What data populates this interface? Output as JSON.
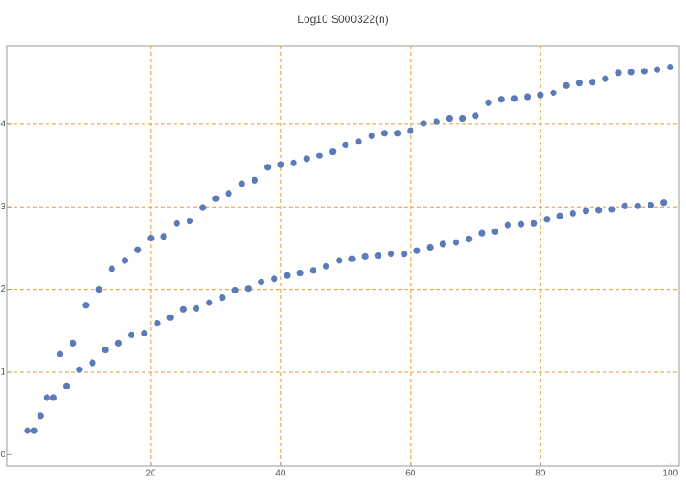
{
  "chart_data": {
    "type": "scatter",
    "title": "Log10 S000322(n)",
    "x": [
      1,
      2,
      3,
      4,
      5,
      6,
      7,
      8,
      9,
      10,
      11,
      12,
      13,
      14,
      15,
      16,
      17,
      18,
      19,
      20,
      21,
      22,
      23,
      24,
      25,
      26,
      27,
      28,
      29,
      30,
      31,
      32,
      33,
      34,
      35,
      36,
      37,
      38,
      39,
      40,
      41,
      42,
      43,
      44,
      45,
      46,
      47,
      48,
      49,
      50,
      51,
      52,
      53,
      54,
      55,
      56,
      57,
      58,
      59,
      60,
      61,
      62,
      63,
      64,
      65,
      66,
      67,
      68,
      69,
      70,
      71,
      72,
      73,
      74,
      75,
      76,
      77,
      78,
      79,
      80,
      81,
      82,
      83,
      84,
      85,
      86,
      87,
      88,
      89,
      90,
      91,
      92,
      93,
      94,
      95,
      96,
      97,
      98,
      99,
      100
    ],
    "series": [
      {
        "color": "#5b7bb8",
        "values": [
          0.29,
          0.29,
          0.47,
          0.69,
          0.69,
          1.22,
          0.83,
          1.35,
          1.03,
          1.81,
          1.11,
          2.0,
          1.27,
          2.25,
          1.35,
          2.35,
          1.45,
          2.48,
          1.47,
          2.62,
          1.59,
          2.64,
          1.66,
          2.8,
          1.76,
          2.83,
          1.77,
          2.99,
          1.84,
          3.1,
          1.9,
          3.16,
          1.99,
          3.28,
          2.01,
          3.32,
          2.09,
          3.48,
          2.13,
          3.51,
          2.17,
          3.53,
          2.2,
          3.58,
          2.23,
          3.62,
          2.28,
          3.67,
          2.35,
          3.75,
          2.37,
          3.79,
          2.4,
          3.86,
          2.41,
          3.89,
          2.43,
          3.89,
          2.43,
          3.92,
          2.47,
          4.01,
          2.51,
          4.03,
          2.55,
          4.07,
          2.57,
          4.07,
          2.61,
          4.1,
          2.68,
          4.26,
          2.7,
          4.3,
          2.78,
          4.31,
          2.79,
          4.33,
          2.8,
          4.35,
          2.85,
          4.38,
          2.89,
          4.47,
          2.92,
          4.5,
          2.95,
          4.51,
          2.96,
          4.55,
          2.97,
          4.62,
          3.01,
          4.63,
          3.01,
          4.64,
          3.02,
          4.66,
          3.05,
          4.69
        ]
      }
    ],
    "xlim": [
      -2.1,
      101.3
    ],
    "ylim": [
      -0.14,
      4.95
    ],
    "xticks": [
      20,
      40,
      60,
      80,
      100
    ],
    "yticks": [
      0,
      1,
      2,
      3,
      4
    ],
    "xgrid": [
      20,
      40,
      60,
      80
    ],
    "ygrid": [
      1,
      2,
      3,
      4
    ],
    "grid_color": "#e69a2e"
  }
}
